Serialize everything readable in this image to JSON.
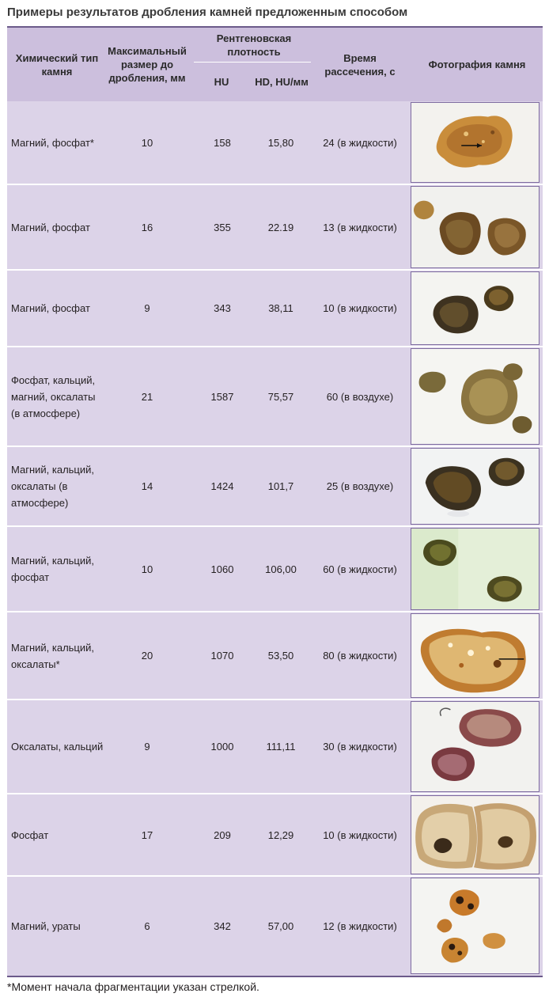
{
  "title": "Примеры результатов дробления камней предложенным способом",
  "header": {
    "col_type": "Химический тип камня",
    "col_size": "Максимальный размер до дробления, мм",
    "col_density": "Рентгеновская плотность",
    "col_hu": "HU",
    "col_hd": "HD, HU/мм",
    "col_time": "Время рассечения, с",
    "col_photo": "Фотография камня"
  },
  "rows": [
    {
      "type": "Магний, фосфат*",
      "size": "10",
      "hu": "158",
      "hd": "15,80",
      "time": "24 (в жидкости)",
      "photo": "stone-photo-1"
    },
    {
      "type": "Магний, фосфат",
      "size": "16",
      "hu": "355",
      "hd": "22.19",
      "time": "13 (в жидкости)",
      "photo": "stone-photo-2"
    },
    {
      "type": "Магний, фосфат",
      "size": "9",
      "hu": "343",
      "hd": "38,11",
      "time": "10 (в жидкости)",
      "photo": "stone-photo-3"
    },
    {
      "type": "Фосфат, кальций, магний, оксалаты (в атмосфере)",
      "size": "21",
      "hu": "1587",
      "hd": "75,57",
      "time": "60 (в воздухе)",
      "photo": "stone-photo-4"
    },
    {
      "type": "Магний, кальций, оксалаты (в атмосфере)",
      "size": "14",
      "hu": "1424",
      "hd": "101,7",
      "time": "25 (в воздухе)",
      "photo": "stone-photo-5"
    },
    {
      "type": "Магний, кальций, фосфат",
      "size": "10",
      "hu": "1060",
      "hd": "106,00",
      "time": "60 (в жидкости)",
      "photo": "stone-photo-6"
    },
    {
      "type": "Магний, кальций, оксалаты*",
      "size": "20",
      "hu": "1070",
      "hd": "53,50",
      "time": "80 (в жидкости)",
      "photo": "stone-photo-7"
    },
    {
      "type": "Оксалаты, кальций",
      "size": "9",
      "hu": "1000",
      "hd": "111,11",
      "time": "30 (в жидкости)",
      "photo": "stone-photo-8"
    },
    {
      "type": "Фосфат",
      "size": "17",
      "hu": "209",
      "hd": "12,29",
      "time": "10 (в жидкости)",
      "photo": "stone-photo-9"
    },
    {
      "type": "Магний, ураты",
      "size": "6",
      "hu": "342",
      "hd": "57,00",
      "time": "12 (в жидкости)",
      "photo": "stone-photo-10"
    }
  ],
  "footnote": "*Момент начала фрагментации указан стрелкой.",
  "colors": {
    "table_bg": "#dcd3e8",
    "header_bg": "#ccbfdd",
    "rule": "#6b5a8a"
  }
}
